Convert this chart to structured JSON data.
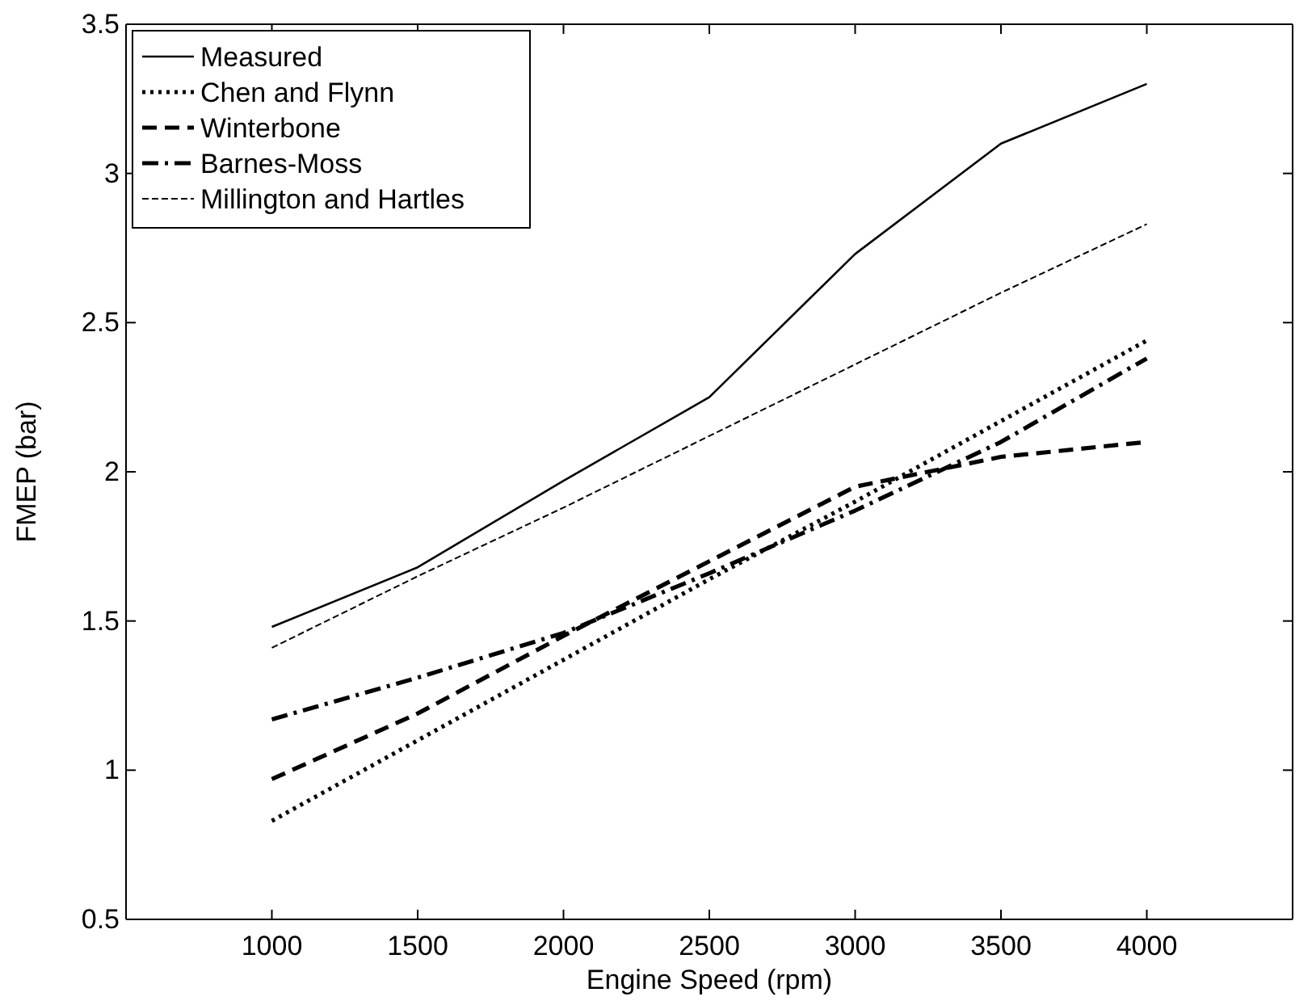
{
  "chart_data": {
    "type": "line",
    "xlabel": "Engine Speed (rpm)",
    "ylabel": "FMEP (bar)",
    "x": [
      1000,
      1500,
      2000,
      2500,
      3000,
      3500,
      4000
    ],
    "xlim": [
      500,
      4500
    ],
    "xticks": [
      1000,
      1500,
      2000,
      2500,
      3000,
      3500,
      4000
    ],
    "ylim": [
      0.5,
      3.5
    ],
    "yticks": [
      0.5,
      1,
      1.5,
      2,
      2.5,
      3,
      3.5
    ],
    "grid": false,
    "legend": "top left",
    "marker": "none",
    "series": [
      {
        "name": "Measured",
        "color": "#000000",
        "line_style": "solid",
        "values": [
          1.48,
          1.68,
          1.97,
          2.25,
          2.73,
          3.1,
          3.3
        ]
      },
      {
        "name": "Chen and Flynn",
        "color": "#000000",
        "line_style": "dotted",
        "values": [
          0.83,
          1.1,
          1.37,
          1.64,
          1.9,
          2.17,
          2.44
        ]
      },
      {
        "name": "Winterbone",
        "color": "#000000",
        "line_style": "dashed",
        "values": [
          0.97,
          1.19,
          1.45,
          1.7,
          1.95,
          2.05,
          2.1
        ]
      },
      {
        "name": "Barnes-Moss",
        "color": "#000000",
        "line_style": "dashdot",
        "values": [
          1.17,
          1.31,
          1.46,
          1.66,
          1.87,
          2.1,
          2.38
        ]
      },
      {
        "name": "Millington and Hartles",
        "color": "#000000",
        "line_style": "dashed",
        "values": [
          1.41,
          1.65,
          1.88,
          2.12,
          2.36,
          2.6,
          2.83
        ]
      }
    ]
  }
}
